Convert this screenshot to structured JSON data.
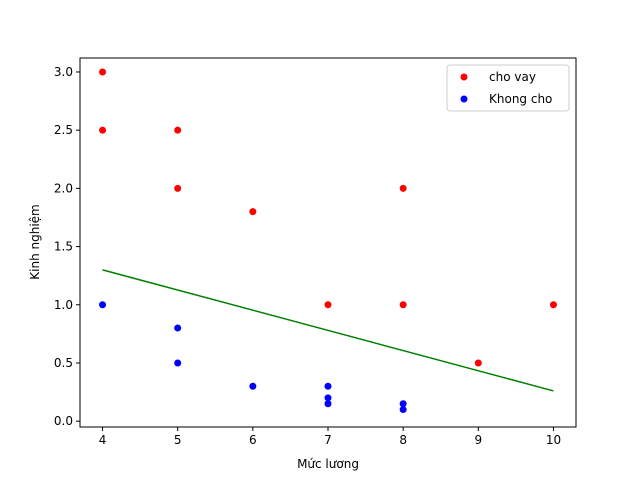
{
  "chart_data": {
    "type": "scatter",
    "xlabel": "Mức lương",
    "ylabel": "Kinh nghiệm",
    "xlim": [
      3.7,
      10.3
    ],
    "ylim": [
      -0.05,
      3.12
    ],
    "xticks": [
      4,
      5,
      6,
      7,
      8,
      9,
      10
    ],
    "yticks": [
      0.0,
      0.5,
      1.0,
      1.5,
      2.0,
      2.5,
      3.0
    ],
    "xtick_labels": [
      "4",
      "5",
      "6",
      "7",
      "8",
      "9",
      "10"
    ],
    "ytick_labels": [
      "0.0",
      "0.5",
      "1.0",
      "1.5",
      "2.0",
      "2.5",
      "3.0"
    ],
    "grid": false,
    "legend_position": "top-right",
    "series": [
      {
        "name": "cho vay",
        "color": "#ff0000",
        "x": [
          4,
          4,
          5,
          5,
          6,
          7,
          8,
          8,
          9,
          10
        ],
        "y": [
          3.0,
          2.5,
          2.5,
          2.0,
          1.8,
          1.0,
          2.0,
          1.0,
          0.5,
          1.0
        ]
      },
      {
        "name": "Khong cho",
        "color": "#0000ff",
        "x": [
          4,
          5,
          5,
          6,
          7,
          7,
          7,
          8,
          8
        ],
        "y": [
          1.0,
          0.8,
          0.5,
          0.3,
          0.3,
          0.2,
          0.15,
          0.15,
          0.1
        ]
      }
    ],
    "line": {
      "color": "#008000",
      "x": [
        4,
        10
      ],
      "y": [
        1.3,
        0.26
      ]
    }
  }
}
